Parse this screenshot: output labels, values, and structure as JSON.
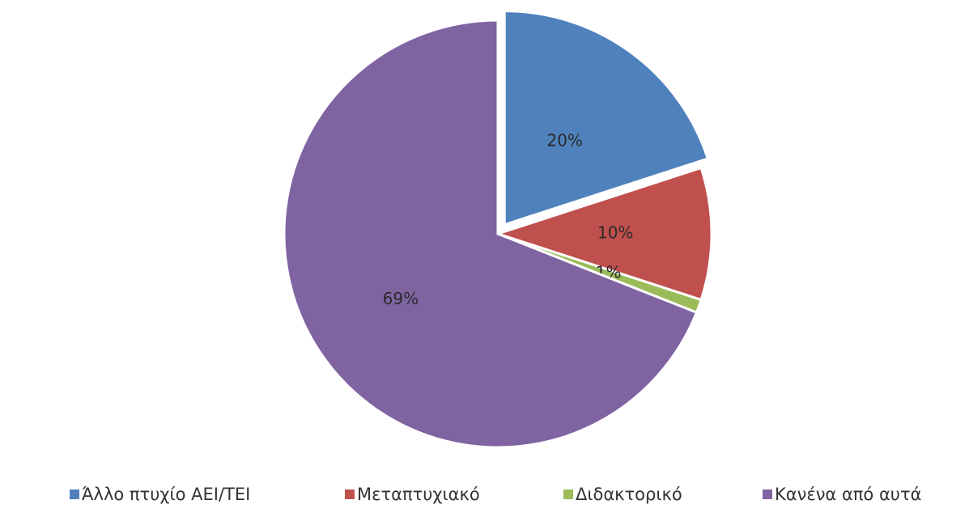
{
  "chart_data": {
    "type": "pie",
    "categories": [
      "Άλλο πτυχίο ΑΕΙ/ΤΕΙ",
      "Μεταπτυχιακό",
      "Διδακτορικό",
      "Κανένα από αυτά"
    ],
    "values": [
      20,
      10,
      1,
      69
    ],
    "value_labels": [
      "20%",
      "10%",
      "1%",
      "69%"
    ],
    "colors": [
      "#4f81bd",
      "#c0504d",
      "#9bbb59",
      "#8064a2"
    ],
    "legend": "bottom"
  }
}
